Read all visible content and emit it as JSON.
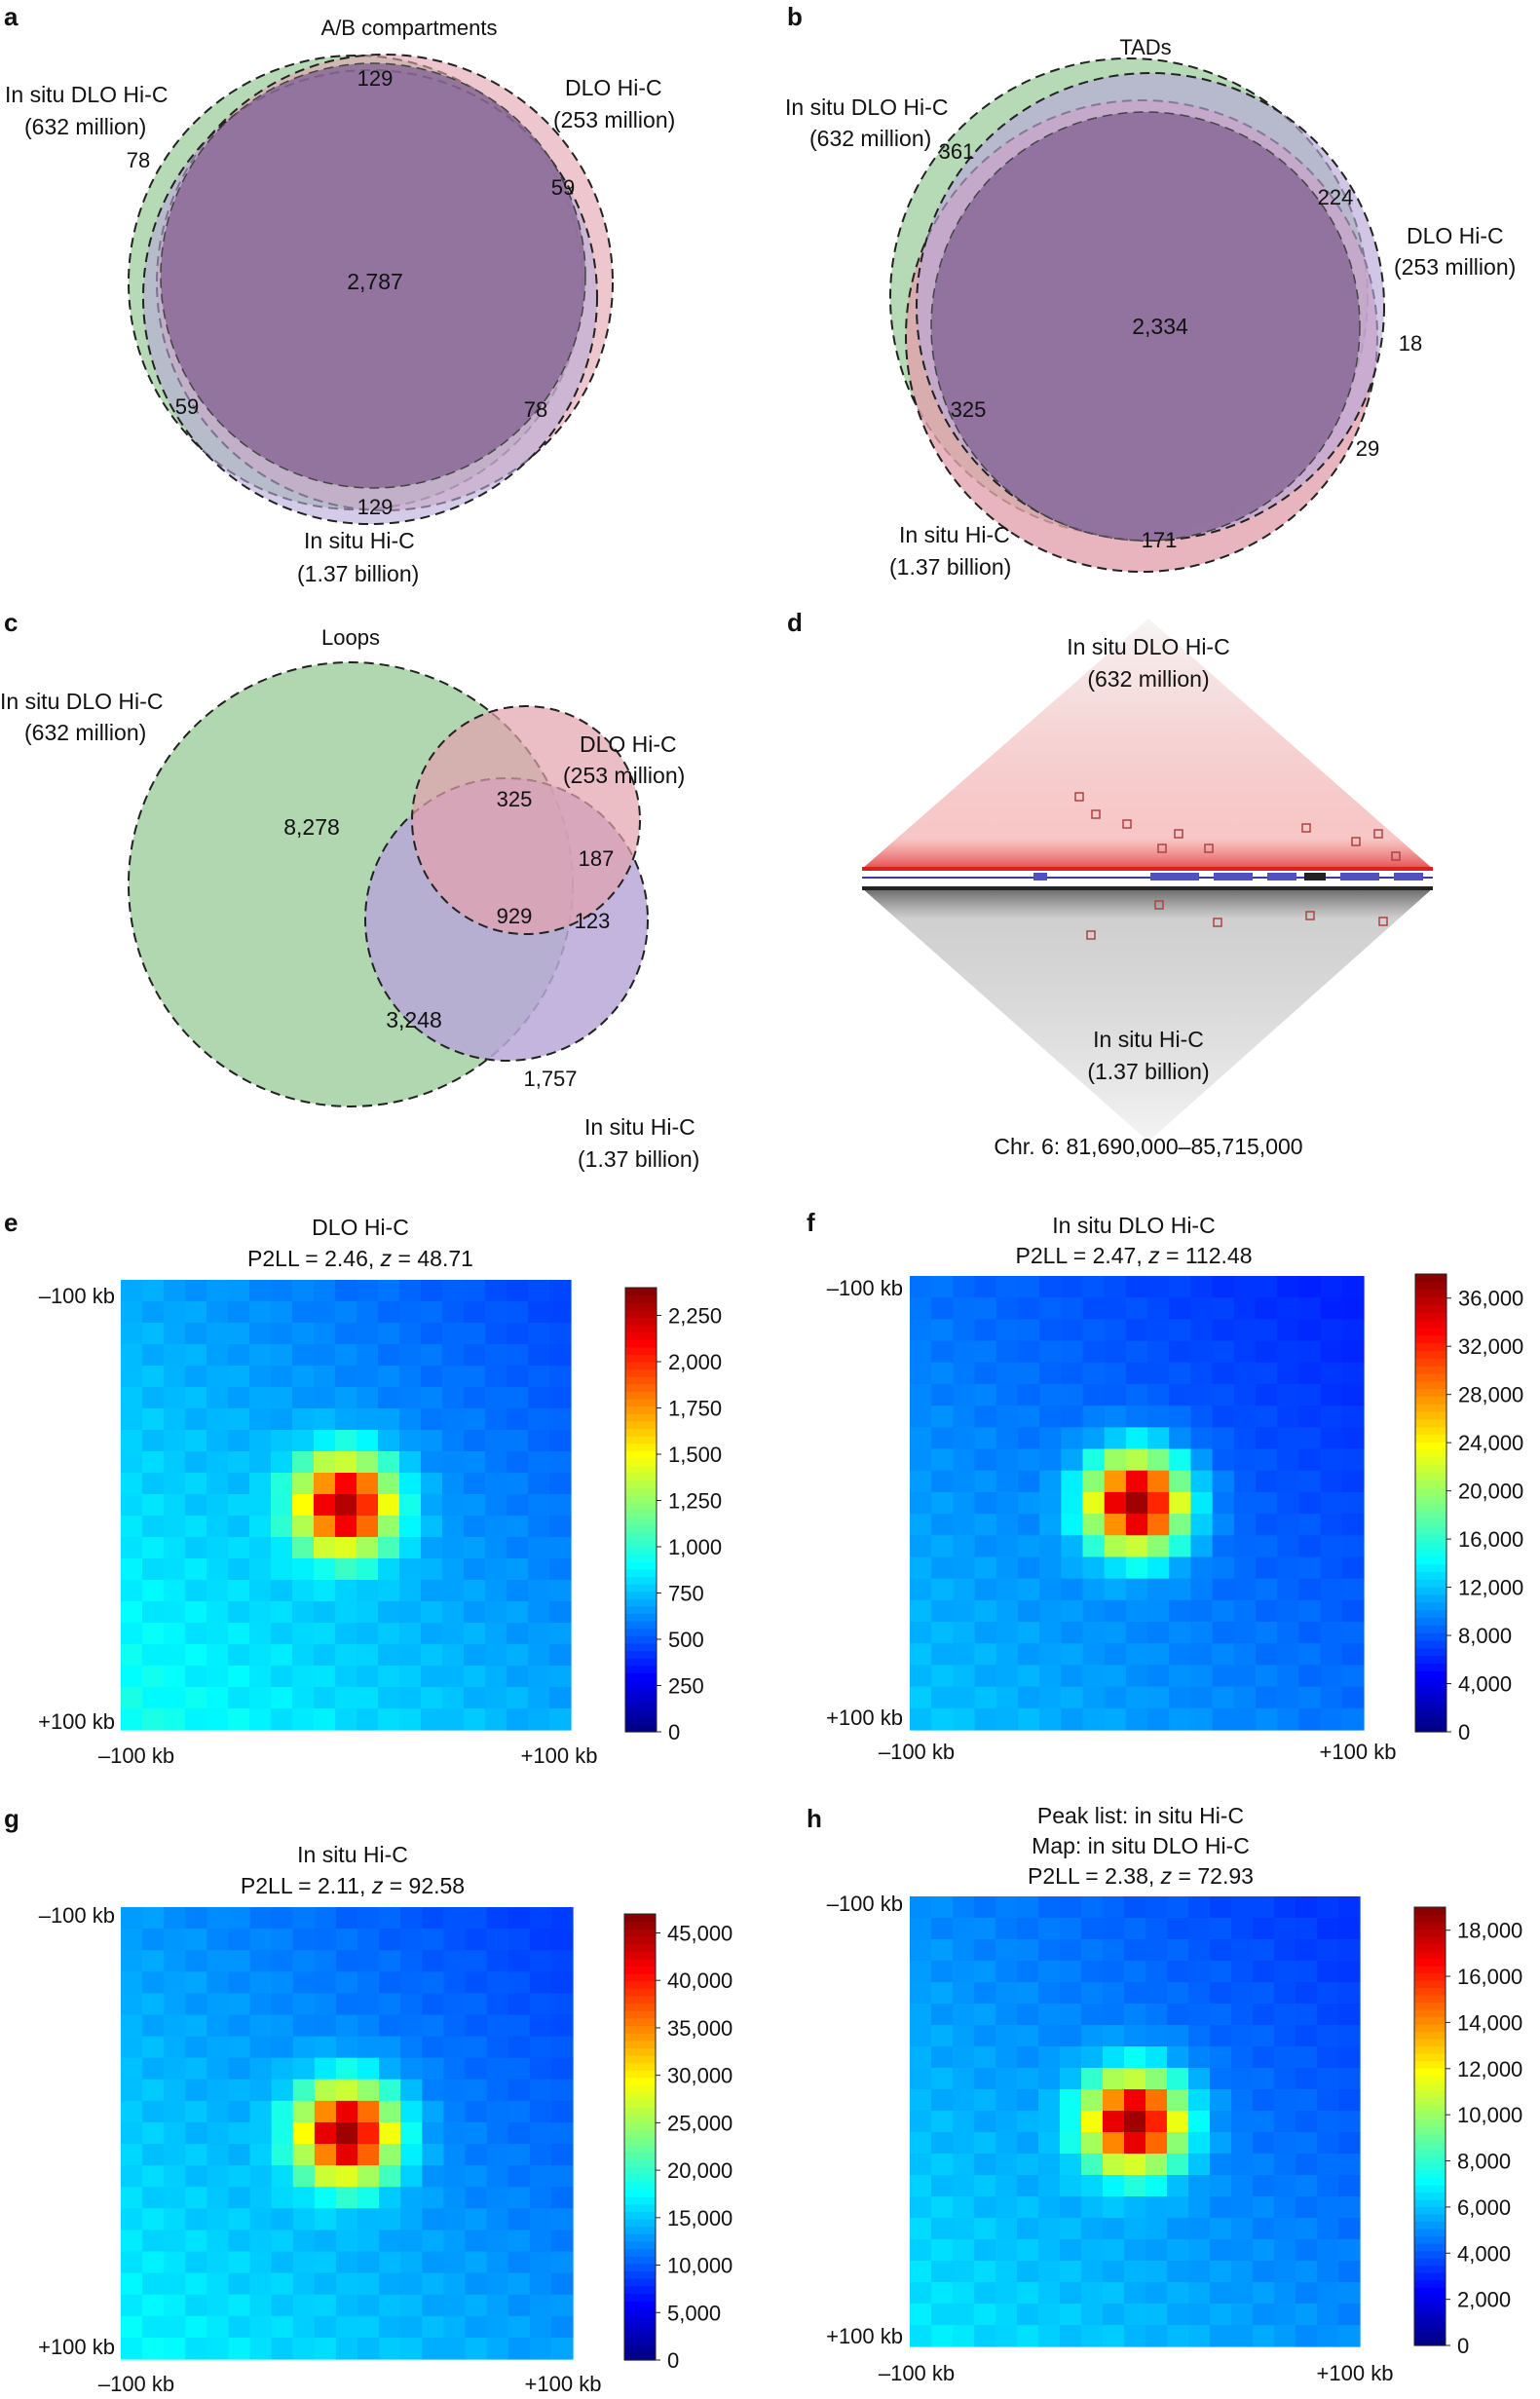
{
  "figure_panels": {
    "a": {
      "letter": "a",
      "title": "A/B compartments",
      "sets": [
        {
          "name": "In situ DLO Hi-C",
          "size": "(632 million)",
          "color": "#a9d3a8"
        },
        {
          "name": "DLO Hi-C",
          "size": "(253 million)",
          "color": "#e2a1ad"
        },
        {
          "name": "In situ Hi-C",
          "size": "(1.37 billion)",
          "color": "#b8a8d8"
        }
      ],
      "region_counts": {
        "all_three": "2,787",
        "top": "129",
        "left": "78",
        "right": "59",
        "lower_left": "59",
        "lower_right": "78",
        "bottom": "129"
      }
    },
    "b": {
      "letter": "b",
      "title": "TADs",
      "sets": [
        {
          "name": "In situ DLO Hi-C",
          "size": "(632 million)",
          "color": "#a9d3a8"
        },
        {
          "name": "DLO Hi-C",
          "size": "(253 million)",
          "color": "#b8a8d8"
        },
        {
          "name": "In situ Hi-C",
          "size": "(1.37 billion)",
          "color": "#e2a1ad"
        }
      ],
      "region_counts": {
        "all_three": "2,334",
        "a": "361",
        "b": "224",
        "c": "18",
        "d": "325",
        "e": "29",
        "f": "171"
      }
    },
    "c": {
      "letter": "c",
      "title": "Loops",
      "sets": [
        {
          "name": "In situ DLO Hi-C",
          "size": "(632 million)",
          "color": "#a9d3a8"
        },
        {
          "name": "DLO Hi-C",
          "size": "(253 million)",
          "color": "#e2a1ad"
        },
        {
          "name": "In situ Hi-C",
          "size": "(1.37 billion)",
          "color": "#b8a8d8"
        }
      ],
      "region_counts": {
        "green_only": "8,278",
        "red_green": "325",
        "red_only": "187",
        "all_three": "929",
        "red_purple": "123",
        "green_purple": "3,248",
        "purple_only": "1,757"
      }
    },
    "d": {
      "letter": "d",
      "top_label": "In situ DLO Hi-C",
      "top_size": "(632 million)",
      "bottom_label": "In situ Hi-C",
      "bottom_size": "(1.37 billion)",
      "region": "Chr. 6: 81,690,000–85,715,000"
    }
  },
  "chart_data": [
    {
      "panel": "e",
      "type": "heatmap",
      "title_line1": "DLO Hi-C",
      "title_line2": "P2LL = 2.46, z = 48.71",
      "p2ll": "2.46",
      "z": "48.71",
      "y_ticks": [
        "–100 kb",
        "+100 kb"
      ],
      "x_ticks": [
        "–100 kb",
        "+100 kb"
      ],
      "colorbar_ticks": [
        "0",
        "250",
        "500",
        "750",
        "1,000",
        "1,250",
        "1,500",
        "1,750",
        "2,000",
        "2,250"
      ],
      "colorbar_range": [
        0,
        2400
      ],
      "grid_size": 21,
      "peak_value": 2350,
      "background_value": 700
    },
    {
      "panel": "f",
      "type": "heatmap",
      "title_line1": "In situ DLO Hi-C",
      "title_line2": "P2LL = 2.47, z = 112.48",
      "p2ll": "2.47",
      "z": "112.48",
      "y_ticks": [
        "–100 kb",
        "+100 kb"
      ],
      "x_ticks": [
        "–100 kb",
        "+100 kb"
      ],
      "colorbar_ticks": [
        "0",
        "4,000",
        "8,000",
        "12,000",
        "16,000",
        "20,000",
        "24,000",
        "28,000",
        "32,000",
        "36,000"
      ],
      "colorbar_range": [
        0,
        38000
      ],
      "grid_size": 21,
      "peak_value": 38000,
      "background_value": 9000
    },
    {
      "panel": "g",
      "type": "heatmap",
      "title_line1": "In situ Hi-C",
      "title_line2": "P2LL = 2.11, z = 92.58",
      "p2ll": "2.11",
      "z": "92.58",
      "y_ticks": [
        "–100 kb",
        "+100 kb"
      ],
      "x_ticks": [
        "–100 kb",
        "+100 kb"
      ],
      "colorbar_ticks": [
        "0",
        "5,000",
        "10,000",
        "15,000",
        "20,000",
        "25,000",
        "30,000",
        "35,000",
        "40,000",
        "45,000"
      ],
      "colorbar_range": [
        0,
        47000
      ],
      "grid_size": 21,
      "peak_value": 47000,
      "background_value": 13000
    },
    {
      "panel": "h",
      "type": "heatmap",
      "title_line1": "Peak list: in situ Hi-C",
      "title_line2": "Map: in situ DLO Hi-C",
      "title_line3": "P2LL = 2.38, z = 72.93",
      "p2ll": "2.38",
      "z": "72.93",
      "y_ticks": [
        "–100 kb",
        "+100 kb"
      ],
      "x_ticks": [
        "–100 kb",
        "+100 kb"
      ],
      "colorbar_ticks": [
        "0",
        "2,000",
        "4,000",
        "6,000",
        "8,000",
        "10,000",
        "12,000",
        "14,000",
        "16,000",
        "18,000"
      ],
      "colorbar_range": [
        0,
        19000
      ],
      "grid_size": 21,
      "peak_value": 19000,
      "background_value": 5000
    }
  ]
}
